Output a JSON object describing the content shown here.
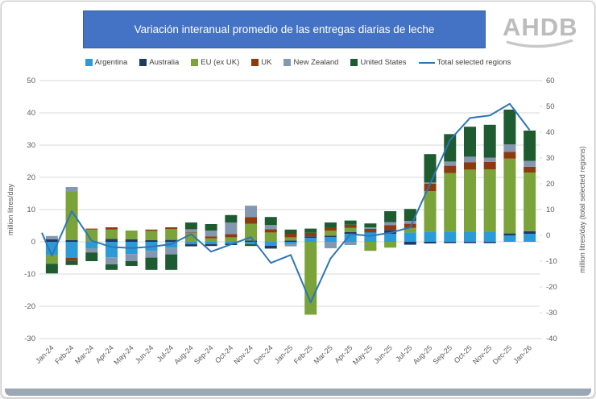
{
  "header": {
    "title": "Variación interanual promedio de las entregas diarias de leche",
    "logo_text": "AHDB"
  },
  "chart_data": {
    "type": "bar",
    "subtype": "stacked-column-with-line",
    "grid": true,
    "legend_position": "top",
    "categories": [
      "Jan-24",
      "Feb-24",
      "Mar-24",
      "Apr-24",
      "May-24",
      "Jun-24",
      "Jul-24",
      "Aug-24",
      "Sep-24",
      "Oct-24",
      "Nov-24",
      "Dec-24",
      "Jan-25",
      "Feb-25",
      "Mar-25",
      "Apr-25",
      "May-25",
      "Jun-25",
      "Jul-25",
      "Aug-25",
      "Sep-25",
      "Oct-25",
      "Nov-25",
      "Dec-25",
      "Jan-26"
    ],
    "series": [
      {
        "name": "Argentina",
        "color": "#2B9BD7",
        "values": [
          -4.0,
          -5.0,
          -2.0,
          -4.8,
          -3.8,
          -2.8,
          -1.8,
          -0.7,
          -0.7,
          -0.6,
          -0.7,
          -1.2,
          -0.7,
          1.2,
          1.5,
          2.5,
          2.9,
          2.5,
          2.9,
          3.1,
          3.1,
          3.0,
          3.0,
          2.0,
          2.5
        ]
      },
      {
        "name": "Australia",
        "color": "#1F3864",
        "values": [
          0.8,
          0.5,
          0.0,
          0.9,
          0.8,
          0.5,
          0.6,
          -0.7,
          -0.6,
          -0.4,
          0.4,
          -0.9,
          0.4,
          0.5,
          0.4,
          0.5,
          0.3,
          1.2,
          -0.9,
          -0.5,
          -0.4,
          -0.4,
          -0.4,
          0.6,
          0.8
        ]
      },
      {
        "name": "EU (ex UK)",
        "color": "#7AA33A",
        "values": [
          -2.8,
          15.0,
          3.8,
          2.9,
          2.7,
          2.9,
          3.4,
          2.7,
          1.1,
          1.4,
          5.2,
          2.9,
          1.0,
          -22.6,
          1.6,
          1.3,
          -2.8,
          -1.8,
          1.4,
          12.6,
          18.2,
          19.4,
          19.5,
          23.2,
          18.2
        ]
      },
      {
        "name": "UK",
        "color": "#8C3B10",
        "values": [
          0.0,
          -0.8,
          0.3,
          0.7,
          0.0,
          0.4,
          0.5,
          0.2,
          0.6,
          1.0,
          2.1,
          1.0,
          1.1,
          1.1,
          1.0,
          1.0,
          0.8,
          1.5,
          1.3,
          2.3,
          2.3,
          2.3,
          2.3,
          2.1,
          1.8
        ]
      },
      {
        "name": "New Zealand",
        "color": "#8497B0",
        "values": [
          1.0,
          1.5,
          -1.3,
          -2.2,
          -2.2,
          -2.1,
          -2.1,
          1.0,
          1.8,
          3.6,
          3.5,
          1.3,
          -0.7,
          0.0,
          -2.0,
          -1.0,
          0.5,
          0.9,
          0.9,
          0.4,
          1.3,
          1.7,
          1.3,
          2.3,
          1.8
        ]
      },
      {
        "name": "United States",
        "color": "#1E5B30",
        "values": [
          -3.0,
          -1.4,
          -2.7,
          -1.7,
          -1.5,
          -3.8,
          -4.8,
          2.1,
          2.0,
          2.3,
          -0.6,
          2.5,
          1.3,
          1.3,
          1.5,
          1.3,
          1.2,
          3.4,
          3.7,
          8.8,
          8.5,
          9.3,
          10.2,
          10.8,
          9.4
        ]
      }
    ],
    "line": {
      "name": "Total selected regions",
      "color": "#2E75B6",
      "axis": "right",
      "lead_in": 1.0,
      "values": [
        -7.9,
        9.4,
        -2.1,
        -4.5,
        -4.9,
        -4.4,
        -3.4,
        0.5,
        -6.3,
        -3.5,
        -0.7,
        -10.7,
        -7.6,
        -26.0,
        -9.0,
        0.5,
        -0.2,
        1.0,
        3.1,
        20.0,
        37.0,
        45.5,
        46.5,
        51.0,
        40.8
      ]
    },
    "left_axis": {
      "label": "million litres/day",
      "min": -30,
      "max": 50,
      "tick_step": 10
    },
    "right_axis": {
      "label": "million litres/day (total selected regions)",
      "min": -40,
      "max": 60,
      "tick_step": 10
    },
    "style": {
      "grid_color": "#d9d9d9",
      "tick_text_color": "#595959",
      "axis_title_color": "#595959",
      "logo_color": "#bcbcbc"
    }
  }
}
